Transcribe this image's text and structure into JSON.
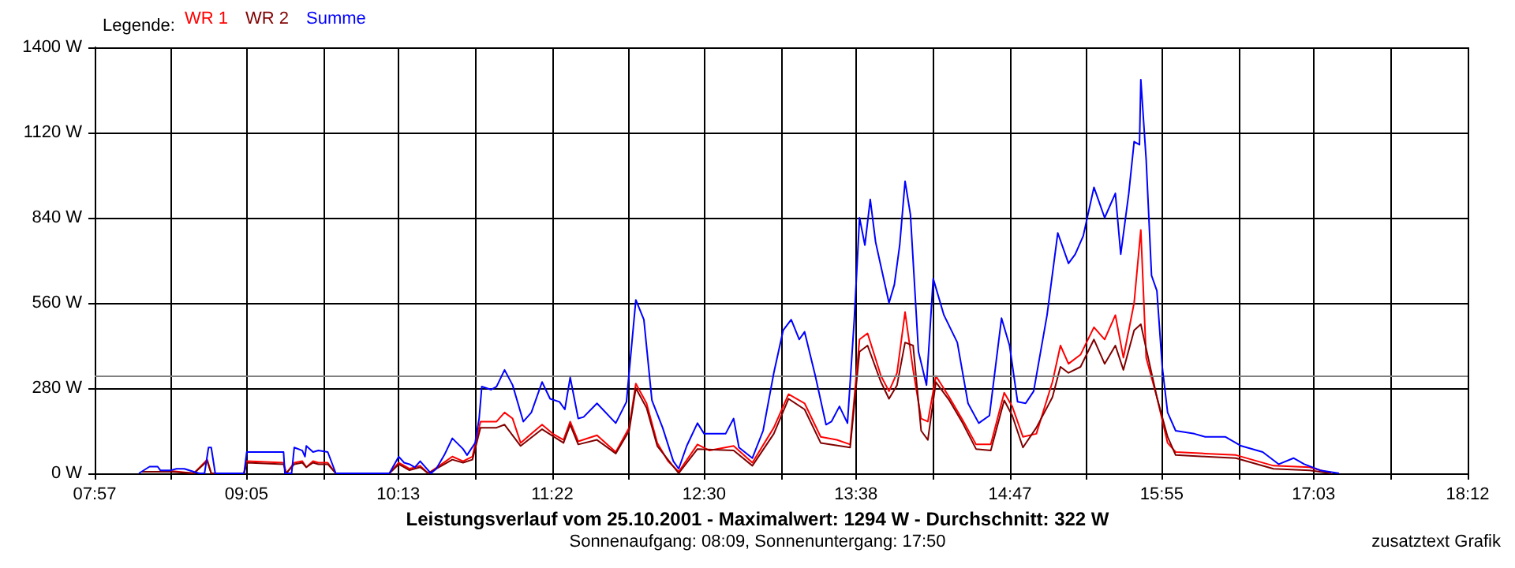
{
  "chart_data": {
    "type": "line",
    "title": "Leistungsverlauf vom 25.10.2001 - Maximalwert: 1294 W - Durchschnitt: 322 W",
    "subtitle": "Sonnenaufgang: 08:09, Sonnenuntergang: 17:50",
    "annotations": [
      "zusatztext Grafik"
    ],
    "legend_title": "Legende:",
    "legend": "top left",
    "grid": true,
    "xlim": [
      7.95,
      18.2
    ],
    "ylim": [
      0,
      1400
    ],
    "xticks": [
      {
        "value": 7.95,
        "label": "07:57"
      },
      {
        "value": 8.5194,
        "label": null
      },
      {
        "value": 9.0833,
        "label": "09:05"
      },
      {
        "value": 9.6583,
        "label": null
      },
      {
        "value": 10.2167,
        "label": "10:13"
      },
      {
        "value": 10.7972,
        "label": null
      },
      {
        "value": 11.3667,
        "label": "11:22"
      },
      {
        "value": 11.9361,
        "label": null
      },
      {
        "value": 12.5,
        "label": "12:30"
      },
      {
        "value": 13.075,
        "label": null
      },
      {
        "value": 13.6333,
        "label": "13:38"
      },
      {
        "value": 14.2139,
        "label": null
      },
      {
        "value": 14.7833,
        "label": "14:47"
      },
      {
        "value": 15.3528,
        "label": null
      },
      {
        "value": 15.9167,
        "label": "15:55"
      },
      {
        "value": 16.4917,
        "label": null
      },
      {
        "value": 17.05,
        "label": "17:03"
      },
      {
        "value": 17.6306,
        "label": null
      },
      {
        "value": 18.2,
        "label": "18:12"
      }
    ],
    "yticks": [
      {
        "value": 0,
        "label": "0 W"
      },
      {
        "value": 280,
        "label": "280 W"
      },
      {
        "value": 560,
        "label": "560 W"
      },
      {
        "value": 840,
        "label": "840 W"
      },
      {
        "value": 1120,
        "label": "1120 W"
      },
      {
        "value": 1400,
        "label": "1400 W"
      }
    ],
    "ref_lines": [
      {
        "axis": "y",
        "value": 322,
        "label": null,
        "color": "#808080"
      }
    ],
    "series": [
      {
        "name": "WR 1",
        "color": "#ff0000",
        "x": [
          8.3,
          8.42,
          8.52,
          8.69,
          8.79,
          8.82,
          9.065,
          9.085,
          9.36,
          9.38,
          9.44,
          9.5,
          9.53,
          9.58,
          9.62,
          9.69,
          9.75,
          10.15,
          10.22,
          10.3,
          10.38,
          10.44,
          10.54,
          10.62,
          10.7,
          10.77,
          10.83,
          10.95,
          11.01,
          11.07,
          11.13,
          11.21,
          11.29,
          11.37,
          11.45,
          11.5,
          11.56,
          11.7,
          11.84,
          11.94,
          11.99,
          12.07,
          12.15,
          12.23,
          12.31,
          12.45,
          12.54,
          12.72,
          12.86,
          13.02,
          13.13,
          13.25,
          13.37,
          13.49,
          13.59,
          13.66,
          13.72,
          13.82,
          13.88,
          13.94,
          14.0,
          14.06,
          14.12,
          14.17,
          14.23,
          14.33,
          14.43,
          14.53,
          14.64,
          14.74,
          14.8,
          14.88,
          14.98,
          15.1,
          15.16,
          15.22,
          15.31,
          15.41,
          15.49,
          15.57,
          15.63,
          15.71,
          15.76,
          15.8,
          15.88,
          15.96,
          16.02,
          16.24,
          16.47,
          16.75,
          17.02,
          17.18
        ],
        "values": [
          5,
          5,
          8,
          0,
          45,
          0,
          0,
          40,
          35,
          0,
          35,
          40,
          20,
          40,
          35,
          35,
          0,
          0,
          35,
          15,
          25,
          0,
          30,
          55,
          40,
          55,
          170,
          170,
          200,
          180,
          100,
          130,
          160,
          130,
          110,
          170,
          105,
          125,
          70,
          150,
          295,
          230,
          100,
          40,
          5,
          95,
          75,
          90,
          35,
          150,
          260,
          230,
          120,
          110,
          95,
          440,
          460,
          320,
          270,
          330,
          530,
          340,
          180,
          170,
          320,
          250,
          175,
          95,
          95,
          265,
          220,
          120,
          130,
          300,
          420,
          360,
          390,
          480,
          440,
          520,
          380,
          560,
          800,
          380,
          250,
          100,
          70,
          65,
          60,
          25,
          20,
          0
        ]
      },
      {
        "name": "WR 2",
        "color": "#800000",
        "x": [
          8.3,
          8.42,
          8.52,
          8.69,
          8.79,
          8.82,
          9.065,
          9.085,
          9.36,
          9.38,
          9.44,
          9.5,
          9.53,
          9.58,
          9.62,
          9.69,
          9.75,
          10.15,
          10.22,
          10.3,
          10.38,
          10.44,
          10.54,
          10.62,
          10.7,
          10.77,
          10.83,
          10.95,
          11.01,
          11.13,
          11.29,
          11.45,
          11.5,
          11.56,
          11.7,
          11.84,
          11.94,
          11.99,
          12.07,
          12.15,
          12.31,
          12.45,
          12.72,
          12.86,
          13.02,
          13.13,
          13.25,
          13.37,
          13.59,
          13.66,
          13.72,
          13.82,
          13.88,
          13.94,
          14.0,
          14.06,
          14.12,
          14.17,
          14.23,
          14.33,
          14.43,
          14.53,
          14.64,
          14.74,
          14.8,
          14.88,
          14.98,
          15.1,
          15.16,
          15.22,
          15.31,
          15.41,
          15.49,
          15.57,
          15.63,
          15.71,
          15.76,
          15.8,
          15.88,
          15.96,
          16.02,
          16.24,
          16.47,
          16.75,
          17.02,
          17.18
        ],
        "values": [
          5,
          5,
          5,
          0,
          40,
          0,
          0,
          35,
          30,
          0,
          30,
          35,
          20,
          35,
          30,
          30,
          0,
          0,
          30,
          10,
          20,
          0,
          25,
          45,
          35,
          45,
          150,
          150,
          160,
          90,
          145,
          100,
          160,
          95,
          110,
          65,
          140,
          280,
          215,
          90,
          0,
          80,
          75,
          25,
          130,
          245,
          210,
          100,
          85,
          400,
          420,
          300,
          245,
          290,
          430,
          420,
          140,
          110,
          300,
          240,
          165,
          80,
          75,
          240,
          190,
          85,
          150,
          250,
          350,
          330,
          350,
          440,
          360,
          420,
          340,
          470,
          490,
          410,
          250,
          120,
          60,
          55,
          50,
          15,
          10,
          0
        ]
      },
      {
        "name": "Summe",
        "color": "#0000ff",
        "x": [
          8.28,
          8.36,
          8.42,
          8.44,
          8.52,
          8.56,
          8.62,
          8.69,
          8.73,
          8.77,
          8.8,
          8.82,
          8.85,
          9.065,
          9.085,
          9.24,
          9.36,
          9.37,
          9.42,
          9.44,
          9.5,
          9.52,
          9.53,
          9.58,
          9.62,
          9.69,
          9.75,
          9.95,
          10.15,
          10.22,
          10.26,
          10.3,
          10.34,
          10.38,
          10.42,
          10.46,
          10.5,
          10.56,
          10.62,
          10.7,
          10.73,
          10.79,
          10.82,
          10.84,
          10.91,
          10.95,
          11.01,
          11.07,
          11.15,
          11.21,
          11.29,
          11.35,
          11.42,
          11.46,
          11.5,
          11.56,
          11.6,
          11.7,
          11.84,
          11.92,
          11.99,
          12.05,
          12.11,
          12.19,
          12.27,
          12.31,
          12.37,
          12.45,
          12.5,
          12.58,
          12.66,
          12.72,
          12.76,
          12.86,
          12.94,
          13.02,
          13.09,
          13.15,
          13.21,
          13.25,
          13.33,
          13.41,
          13.45,
          13.51,
          13.57,
          13.62,
          13.66,
          13.7,
          13.74,
          13.78,
          13.82,
          13.88,
          13.92,
          13.96,
          14.0,
          14.04,
          14.1,
          14.16,
          14.21,
          14.29,
          14.39,
          14.47,
          14.55,
          14.63,
          14.72,
          14.78,
          14.84,
          14.9,
          14.96,
          15.06,
          15.14,
          15.22,
          15.27,
          15.33,
          15.41,
          15.49,
          15.57,
          15.61,
          15.67,
          15.71,
          15.75,
          15.76,
          15.8,
          15.84,
          15.88,
          15.92,
          15.96,
          16.02,
          16.16,
          16.24,
          16.39,
          16.51,
          16.67,
          16.79,
          16.9,
          16.98,
          17.1,
          17.24
        ],
        "values": [
          0,
          22,
          22,
          10,
          10,
          15,
          15,
          5,
          0,
          0,
          85,
          85,
          0,
          0,
          70,
          70,
          70,
          0,
          0,
          85,
          75,
          55,
          90,
          70,
          75,
          70,
          0,
          0,
          0,
          55,
          35,
          30,
          20,
          40,
          20,
          0,
          15,
          60,
          115,
          80,
          60,
          100,
          180,
          285,
          275,
          285,
          340,
          290,
          170,
          200,
          300,
          245,
          235,
          210,
          315,
          180,
          185,
          230,
          165,
          235,
          570,
          505,
          240,
          150,
          40,
          15,
          90,
          165,
          130,
          130,
          130,
          180,
          85,
          50,
          140,
          330,
          470,
          505,
          440,
          465,
          320,
          160,
          170,
          220,
          165,
          500,
          840,
          750,
          900,
          760,
          680,
          560,
          620,
          750,
          960,
          850,
          400,
          290,
          640,
          520,
          430,
          230,
          165,
          190,
          510,
          420,
          235,
          230,
          270,
          520,
          790,
          690,
          720,
          780,
          940,
          840,
          920,
          720,
          920,
          1090,
          1080,
          1294,
          1030,
          650,
          600,
          350,
          200,
          140,
          130,
          120,
          120,
          90,
          70,
          30,
          50,
          30,
          10,
          0
        ]
      }
    ]
  }
}
